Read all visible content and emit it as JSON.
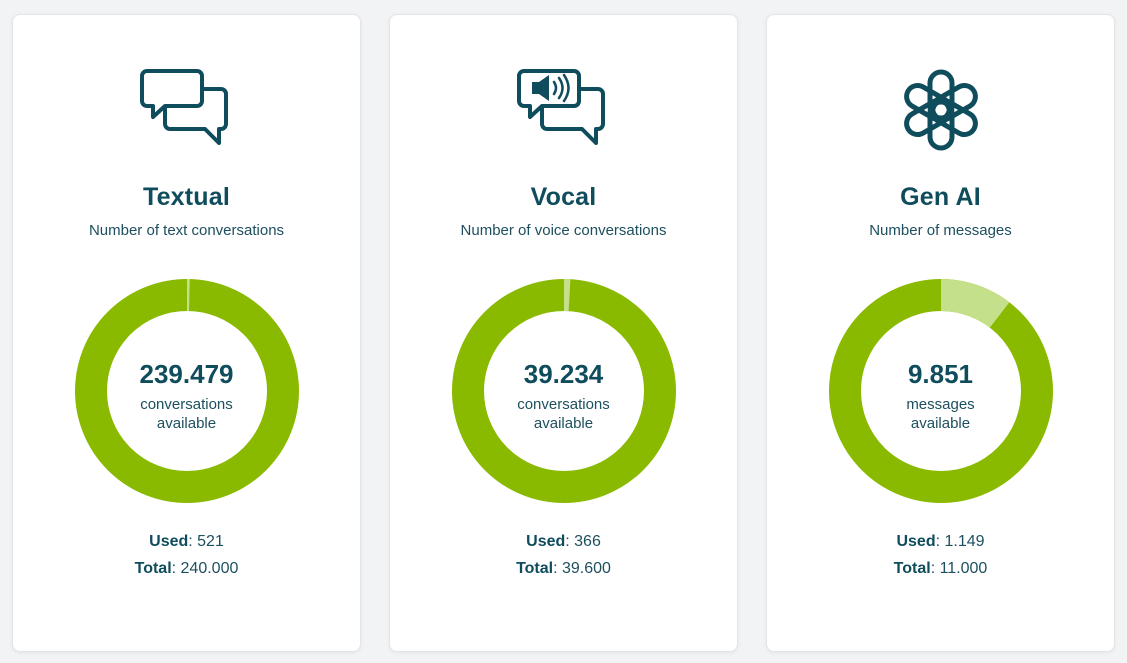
{
  "colors": {
    "ring": "#8aba00",
    "used": "#c5e08a",
    "text": "#0f4c5c"
  },
  "cards": [
    {
      "icon": "chat-bubbles-icon",
      "title": "Textual",
      "subtitle": "Number of text conversations",
      "available": "239.479",
      "unit_line1": "conversations",
      "unit_line2": "available",
      "used_label": "Used",
      "used_value": "521",
      "total_label": "Total",
      "total_value": "240.000",
      "used_fraction": 0.00217
    },
    {
      "icon": "voice-chat-bubbles-icon",
      "title": "Vocal",
      "subtitle": "Number of voice conversations",
      "available": "39.234",
      "unit_line1": "conversations",
      "unit_line2": "available",
      "used_label": "Used",
      "used_value": "366",
      "total_label": "Total",
      "total_value": "39.600",
      "used_fraction": 0.00924
    },
    {
      "icon": "openai-logo-icon",
      "title": "Gen AI",
      "subtitle": "Number of messages",
      "available": "9.851",
      "unit_line1": "messages",
      "unit_line2": "available",
      "used_label": "Used",
      "used_value": "1.149",
      "total_label": "Total",
      "total_value": "11.000",
      "used_fraction": 0.1045
    }
  ]
}
